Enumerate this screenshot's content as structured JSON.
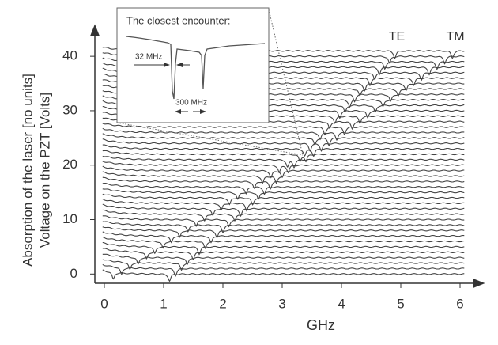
{
  "chart_data": {
    "type": "waterfall",
    "xlabel": "GHz",
    "ylabel": [
      "Absorption of the laser [no units]",
      "Voltage on the PZT [Volts]"
    ],
    "xlim": [
      -0.16,
      6.24
    ],
    "xticks": [
      0,
      1,
      2,
      3,
      4,
      5,
      6
    ],
    "ylim": [
      -1.7,
      43.8
    ],
    "yticks": [
      0,
      10,
      20,
      30,
      40
    ],
    "color": "#444444",
    "annotations": {
      "te": "TE",
      "tm": "TM"
    },
    "inset": {
      "title": "The closest encounter:",
      "gap_label": "32 MHz",
      "span_label": "300 MHz"
    },
    "traces": [
      {
        "offset": 0,
        "dips": [
          0.15,
          1.1
        ]
      },
      {
        "offset": 1,
        "dips": [
          0.29,
          1.2
        ]
      },
      {
        "offset": 2,
        "dips": [
          0.43,
          1.3
        ]
      },
      {
        "offset": 3,
        "dips": [
          0.57,
          1.4
        ]
      },
      {
        "offset": 4,
        "dips": [
          0.71,
          1.5
        ]
      },
      {
        "offset": 5,
        "dips": [
          0.85,
          1.6
        ]
      },
      {
        "offset": 6,
        "dips": [
          0.99,
          1.7
        ]
      },
      {
        "offset": 7,
        "dips": [
          1.13,
          1.8
        ]
      },
      {
        "offset": 8,
        "dips": [
          1.27,
          1.9
        ]
      },
      {
        "offset": 9,
        "dips": [
          1.41,
          2.0
        ]
      },
      {
        "offset": 10,
        "dips": [
          1.55,
          2.1
        ]
      },
      {
        "offset": 11,
        "dips": [
          1.69,
          2.2
        ]
      },
      {
        "offset": 12,
        "dips": [
          1.83,
          2.3
        ]
      },
      {
        "offset": 13,
        "dips": [
          1.97,
          2.4
        ]
      },
      {
        "offset": 14,
        "dips": [
          2.11,
          2.5
        ]
      },
      {
        "offset": 15,
        "dips": [
          2.25,
          2.6
        ]
      },
      {
        "offset": 16,
        "dips": [
          2.39,
          2.7
        ]
      },
      {
        "offset": 17,
        "dips": [
          2.53,
          2.8
        ]
      },
      {
        "offset": 18,
        "dips": [
          2.67,
          2.9
        ]
      },
      {
        "offset": 19,
        "dips": [
          2.81,
          3.0
        ]
      },
      {
        "offset": 20,
        "dips": [
          2.95,
          3.1
        ]
      },
      {
        "offset": 21,
        "dips": [
          3.09,
          3.2
        ]
      },
      {
        "offset": 22,
        "dips": [
          3.3,
          3.4
        ]
      },
      {
        "offset": 23,
        "dips": [
          3.38,
          3.53
        ]
      },
      {
        "offset": 24,
        "dips": [
          3.47,
          3.66
        ]
      },
      {
        "offset": 25,
        "dips": [
          3.55,
          3.79
        ]
      },
      {
        "offset": 26,
        "dips": [
          3.64,
          3.92
        ]
      },
      {
        "offset": 27,
        "dips": [
          3.72,
          4.05
        ]
      },
      {
        "offset": 28,
        "dips": [
          3.8,
          4.18
        ]
      },
      {
        "offset": 29,
        "dips": [
          3.89,
          4.31
        ]
      },
      {
        "offset": 30,
        "dips": [
          3.97,
          4.44
        ]
      },
      {
        "offset": 31,
        "dips": [
          4.06,
          4.57
        ]
      },
      {
        "offset": 32,
        "dips": [
          4.14,
          4.7
        ]
      },
      {
        "offset": 33,
        "dips": [
          4.22,
          4.83
        ]
      },
      {
        "offset": 34,
        "dips": [
          4.31,
          4.96
        ]
      },
      {
        "offset": 35,
        "dips": [
          4.39,
          5.09
        ]
      },
      {
        "offset": 36,
        "dips": [
          4.48,
          5.22
        ]
      },
      {
        "offset": 37,
        "dips": [
          4.56,
          5.35
        ]
      },
      {
        "offset": 38,
        "dips": [
          4.64,
          5.48
        ]
      },
      {
        "offset": 39,
        "dips": [
          4.73,
          5.61
        ]
      },
      {
        "offset": 40,
        "dips": [
          4.81,
          5.74
        ]
      },
      {
        "offset": 41,
        "dips": [
          4.9,
          5.87
        ]
      }
    ]
  }
}
